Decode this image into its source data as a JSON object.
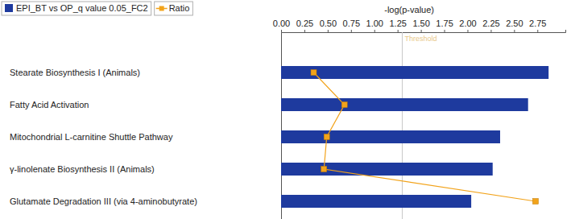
{
  "chart_data": {
    "type": "bar",
    "orientation": "horizontal",
    "x_label": "-log(p-value)",
    "categories": [
      "Stearate Biosynthesis I (Animals)",
      "Fatty Acid Activation",
      "Mitochondrial L-carnitine Shuttle Pathway",
      "γ-linolenate Biosynthesis II (Animals)",
      "Glutamate Degradation III (via 4-aminobutyrate)"
    ],
    "series": [
      {
        "name": "EPI_BT vs OP_q value 0.05_FC2",
        "type": "bar",
        "color": "#1e3a9e",
        "values": [
          2.87,
          2.65,
          2.35,
          2.27,
          2.04
        ]
      },
      {
        "name": "Ratio",
        "type": "line",
        "color": "#f2a31b",
        "marker": "square",
        "values": [
          0.35,
          0.68,
          0.49,
          0.46,
          2.73
        ]
      }
    ],
    "xlim": [
      0,
      3.05
    ],
    "xticks": [
      {
        "value": 0,
        "label": "0.00"
      },
      {
        "value": 0.25,
        "label": "0.25"
      },
      {
        "value": 0.5,
        "label": "0.50"
      },
      {
        "value": 0.75,
        "label": "0.75"
      },
      {
        "value": 1,
        "label": "1.00"
      },
      {
        "value": 1.25,
        "label": "1.25"
      },
      {
        "value": 1.5,
        "label": "1.50"
      },
      {
        "value": 1.75,
        "label": "1.75"
      },
      {
        "value": 2,
        "label": "2.00"
      },
      {
        "value": 2.25,
        "label": "2.25"
      },
      {
        "value": 2.5,
        "label": "2.50"
      },
      {
        "value": 2.75,
        "label": "2.75"
      }
    ],
    "grid": false,
    "legend": "top-left",
    "annotations": [
      {
        "text": "Threshold",
        "value": 1.3
      }
    ]
  }
}
